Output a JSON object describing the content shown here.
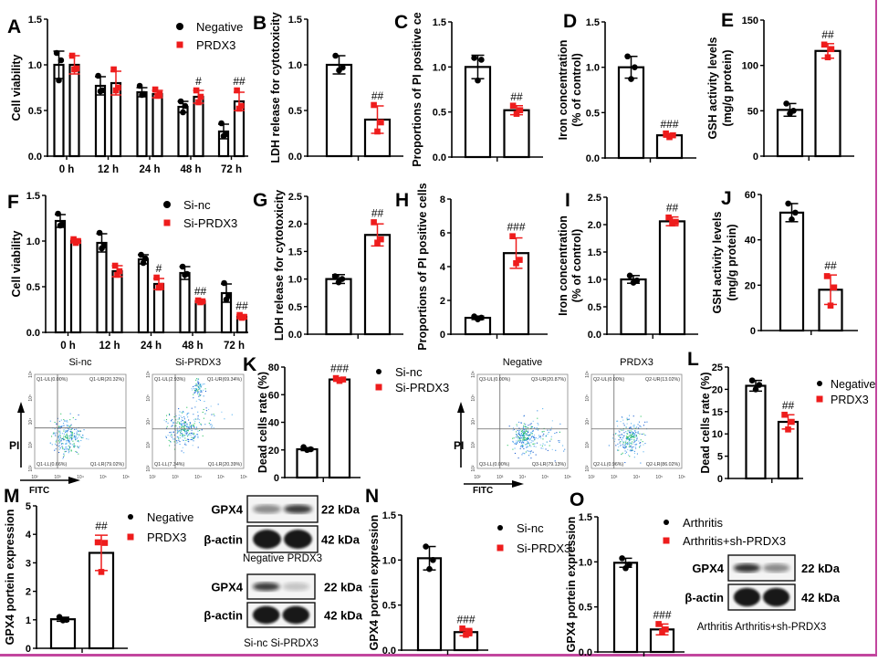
{
  "colors": {
    "control": "#000000",
    "treatment": "#ee1c1c",
    "frame": "#c2469e"
  },
  "chart_data": [
    {
      "panel": "A",
      "type": "bar",
      "ylabel": [
        "Cell viability"
      ],
      "ylim": [
        0,
        1.5
      ],
      "yticks": [
        "0.0",
        "0.5",
        "1.0",
        "1.5"
      ],
      "ytick_values": [
        0,
        0.5,
        1,
        1.5
      ],
      "categories": [
        "0 h",
        "12 h",
        "24 h",
        "48 h",
        "72 h"
      ],
      "series": [
        {
          "name": "Negative",
          "values": [
            1.0,
            0.77,
            0.7,
            0.54,
            0.27
          ],
          "sd": [
            0.15,
            0.1,
            0.05,
            0.06,
            0.08
          ],
          "points": [
            [
              1.13,
              1.05,
              0.83
            ],
            [
              0.88,
              0.72,
              0.71
            ],
            [
              0.77,
              0.68,
              0.67
            ],
            [
              0.6,
              0.55,
              0.48
            ],
            [
              0.36,
              0.24,
              0.22
            ]
          ]
        },
        {
          "name": "PRDX3",
          "values": [
            1.0,
            0.8,
            0.68,
            0.65,
            0.6
          ],
          "sd": [
            0.1,
            0.13,
            0.04,
            0.07,
            0.1
          ],
          "points": [
            [
              1.1,
              0.96,
              0.95
            ],
            [
              0.95,
              0.75,
              0.72
            ],
            [
              0.73,
              0.68,
              0.66
            ],
            [
              0.72,
              0.65,
              0.59
            ],
            [
              0.72,
              0.55,
              0.52
            ]
          ]
        }
      ],
      "significance": [
        "",
        "",
        "",
        "#",
        "##"
      ]
    },
    {
      "panel": "B",
      "type": "bar",
      "ylabel": [
        "LDH release for cytotoxicity"
      ],
      "ylim": [
        0,
        1.5
      ],
      "yticks": [
        "0.0",
        "0.5",
        "1.0",
        "1.5"
      ],
      "ytick_values": [
        0,
        0.5,
        1,
        1.5
      ],
      "series": [
        {
          "values": [
            1.0
          ],
          "sd": [
            0.1
          ],
          "points": [
            [
              1.1,
              0.97,
              0.94
            ]
          ]
        },
        {
          "values": [
            0.4
          ],
          "sd": [
            0.15
          ],
          "points": [
            [
              0.56,
              0.37,
              0.27
            ]
          ]
        }
      ],
      "significance": [
        "##"
      ]
    },
    {
      "panel": "C",
      "type": "bar",
      "ylabel": [
        "Proportions of PI positive ce"
      ],
      "ylim": [
        0,
        1.5
      ],
      "yticks": [
        "0.0",
        "0.5",
        "1.0",
        "1.5"
      ],
      "ytick_values": [
        0,
        0.5,
        1,
        1.5
      ],
      "series": [
        {
          "values": [
            1.0
          ],
          "sd": [
            0.13
          ],
          "points": [
            [
              1.1,
              1.08,
              0.85
            ]
          ]
        },
        {
          "values": [
            0.52
          ],
          "sd": [
            0.05
          ],
          "points": [
            [
              0.57,
              0.52,
              0.48
            ]
          ]
        }
      ],
      "significance": [
        "##"
      ]
    },
    {
      "panel": "D",
      "type": "bar",
      "ylabel": [
        "Iron concentration",
        "(% of control)"
      ],
      "ylim": [
        0,
        1.5
      ],
      "yticks": [
        "0.0",
        "0.5",
        "1.0",
        "1.5"
      ],
      "ytick_values": [
        0,
        0.5,
        1,
        1.5
      ],
      "series": [
        {
          "values": [
            1.0
          ],
          "sd": [
            0.12
          ],
          "points": [
            [
              1.12,
              1.0,
              0.87
            ]
          ]
        },
        {
          "values": [
            0.25
          ],
          "sd": [
            0.02
          ],
          "points": [
            [
              0.27,
              0.25,
              0.23
            ]
          ]
        }
      ],
      "significance": [
        "###"
      ]
    },
    {
      "panel": "E",
      "type": "bar",
      "ylabel": [
        "GSH activity levels",
        "(mg/g protein)"
      ],
      "ylim": [
        0,
        150
      ],
      "yticks": [
        "0",
        "50",
        "100",
        "150"
      ],
      "ytick_values": [
        0,
        50,
        100,
        150
      ],
      "series": [
        {
          "values": [
            51
          ],
          "sd": [
            7
          ],
          "points": [
            [
              58,
              50,
              47
            ]
          ]
        },
        {
          "values": [
            116
          ],
          "sd": [
            8
          ],
          "points": [
            [
              123,
              118,
              109
            ]
          ]
        }
      ],
      "significance": [
        "##"
      ]
    },
    {
      "panel": "F",
      "type": "bar",
      "ylabel": [
        "Cell viability"
      ],
      "ylim": [
        0,
        1.5
      ],
      "yticks": [
        "0.0",
        "0.5",
        "1.0",
        "1.5"
      ],
      "ytick_values": [
        0,
        0.5,
        1,
        1.5
      ],
      "categories": [
        "0 h",
        "12 h",
        "24 h",
        "48 h",
        "72 h"
      ],
      "series": [
        {
          "name": "Si-nc",
          "values": [
            1.22,
            0.98,
            0.8,
            0.65,
            0.43
          ],
          "sd": [
            0.07,
            0.1,
            0.05,
            0.07,
            0.1
          ],
          "points": [
            [
              1.3,
              1.18,
              1.17
            ],
            [
              1.09,
              0.95,
              0.92
            ],
            [
              0.85,
              0.81,
              0.76
            ],
            [
              0.72,
              0.64,
              0.63
            ],
            [
              0.54,
              0.4,
              0.36
            ]
          ]
        },
        {
          "name": "Si-PRDX3",
          "values": [
            1.0,
            0.67,
            0.53,
            0.34,
            0.17
          ],
          "sd": [
            0.02,
            0.06,
            0.06,
            0.01,
            0.02
          ],
          "points": [
            [
              1.02,
              1.0,
              0.98
            ],
            [
              0.73,
              0.67,
              0.63
            ],
            [
              0.6,
              0.51,
              0.49
            ],
            [
              0.35,
              0.34,
              0.33
            ],
            [
              0.19,
              0.17,
              0.16
            ]
          ]
        }
      ],
      "significance": [
        "",
        "",
        "#",
        "##",
        "##"
      ]
    },
    {
      "panel": "G",
      "type": "bar",
      "ylabel": [
        "LDH release for cytotoxicity"
      ],
      "ylim": [
        0,
        2.5
      ],
      "yticks": [
        "0.0",
        "0.5",
        "1.0",
        "1.5",
        "2.0",
        "2.5"
      ],
      "ytick_values": [
        0,
        0.5,
        1,
        1.5,
        2,
        2.5
      ],
      "series": [
        {
          "values": [
            1.0
          ],
          "sd": [
            0.08
          ],
          "points": [
            [
              1.05,
              1.0,
              0.94
            ]
          ]
        },
        {
          "values": [
            1.8
          ],
          "sd": [
            0.2
          ],
          "points": [
            [
              2.03,
              1.72,
              1.66
            ]
          ]
        }
      ],
      "significance": [
        "##"
      ]
    },
    {
      "panel": "H",
      "type": "bar",
      "ylabel": [
        "Proportions of PI positive cells"
      ],
      "ylim": [
        0,
        8
      ],
      "yticks": [
        "0",
        "2",
        "4",
        "6",
        "8"
      ],
      "ytick_values": [
        0,
        2,
        4,
        6,
        8
      ],
      "series": [
        {
          "values": [
            0.97
          ],
          "sd": [
            0.1
          ],
          "points": [
            [
              1.05,
              0.98,
              0.88
            ]
          ]
        },
        {
          "values": [
            4.8
          ],
          "sd": [
            0.9
          ],
          "points": [
            [
              5.8,
              4.4,
              4.2
            ]
          ]
        }
      ],
      "significance": [
        "###"
      ]
    },
    {
      "panel": "I",
      "type": "bar",
      "ylabel": [
        "Iron concentration",
        "(% of control)"
      ],
      "ylim": [
        0,
        2.5
      ],
      "yticks": [
        "0.0",
        "0.5",
        "1.0",
        "1.5",
        "2.0",
        "2.5"
      ],
      "ytick_values": [
        0,
        0.5,
        1,
        1.5,
        2,
        2.5
      ],
      "series": [
        {
          "values": [
            1.0
          ],
          "sd": [
            0.07
          ],
          "points": [
            [
              1.07,
              0.98,
              0.94
            ]
          ]
        },
        {
          "values": [
            2.06
          ],
          "sd": [
            0.08
          ],
          "points": [
            [
              2.13,
              2.05,
              2.02
            ]
          ]
        }
      ],
      "significance": [
        "##"
      ]
    },
    {
      "panel": "J",
      "type": "bar",
      "ylabel": [
        "GSH activity levels",
        "(mg/g protein)"
      ],
      "ylim": [
        0,
        60
      ],
      "yticks": [
        "0",
        "20",
        "40",
        "60"
      ],
      "ytick_values": [
        0,
        20,
        40,
        60
      ],
      "series": [
        {
          "values": [
            52
          ],
          "sd": [
            4
          ],
          "points": [
            [
              56,
              52,
              49
            ]
          ]
        },
        {
          "values": [
            18
          ],
          "sd": [
            6.5
          ],
          "points": [
            [
              24,
              19,
              11
            ]
          ]
        }
      ],
      "significance": [
        "##"
      ]
    },
    {
      "panel": "K",
      "type": "bar",
      "ylabel": [
        "Dead cells rate (%)"
      ],
      "ylim": [
        0,
        80
      ],
      "yticks": [
        "0",
        "20",
        "40",
        "60",
        "80"
      ],
      "ytick_values": [
        0,
        20,
        40,
        60,
        80
      ],
      "series": [
        {
          "name": "Si-nc",
          "values": [
            20.5
          ],
          "sd": [
            1
          ],
          "points": [
            [
              22,
              20.5,
              20
            ]
          ]
        },
        {
          "name": "Si-PRDX3",
          "values": [
            71
          ],
          "sd": [
            1.3
          ],
          "points": [
            [
              72,
              71,
              70
            ]
          ]
        }
      ],
      "significance": [
        "###"
      ]
    },
    {
      "panel": "L",
      "type": "bar",
      "ylabel": [
        "Dead cells rate  (%)"
      ],
      "ylim": [
        0,
        25
      ],
      "yticks": [
        "0",
        "5",
        "10",
        "15",
        "20",
        "25"
      ],
      "ytick_values": [
        0,
        5,
        10,
        15,
        20,
        25
      ],
      "series": [
        {
          "name": "Negative",
          "values": [
            20.8
          ],
          "sd": [
            1.2
          ],
          "points": [
            [
              22,
              21,
              20
            ]
          ]
        },
        {
          "name": "PRDX3",
          "values": [
            12.7
          ],
          "sd": [
            1.6
          ],
          "points": [
            [
              14.3,
              12.7,
              11
            ]
          ]
        }
      ],
      "significance": [
        "##"
      ]
    },
    {
      "panel": "M",
      "type": "bar",
      "ylabel": [
        "GPX4 portein expression"
      ],
      "ylim": [
        0,
        5
      ],
      "yticks": [
        "0",
        "1",
        "2",
        "3",
        "4",
        "5"
      ],
      "ytick_values": [
        0,
        1,
        2,
        3,
        4,
        5
      ],
      "series": [
        {
          "name": "Negative",
          "values": [
            1.02
          ],
          "sd": [
            0.07
          ],
          "points": [
            [
              1.1,
              1.0,
              0.98
            ]
          ]
        },
        {
          "name": "PRDX3",
          "values": [
            3.35
          ],
          "sd": [
            0.62
          ],
          "points": [
            [
              3.72,
              3.7,
              2.68
            ]
          ]
        }
      ],
      "significance": [
        "##"
      ]
    },
    {
      "panel": "N",
      "type": "bar",
      "ylabel": [
        "GPX4 portein expression"
      ],
      "ylim": [
        0,
        1.5
      ],
      "yticks": [
        "0.0",
        "0.5",
        "1.0",
        "1.5"
      ],
      "ytick_values": [
        0,
        0.5,
        1,
        1.5
      ],
      "series": [
        {
          "name": "Si-nc",
          "values": [
            1.02
          ],
          "sd": [
            0.13
          ],
          "points": [
            [
              1.15,
              1.0,
              0.9
            ]
          ]
        },
        {
          "name": "Si-PRDX3",
          "values": [
            0.2
          ],
          "sd": [
            0.04
          ],
          "points": [
            [
              0.24,
              0.2,
              0.17
            ]
          ]
        }
      ],
      "significance": [
        "###"
      ]
    },
    {
      "panel": "O",
      "type": "bar",
      "ylabel": [
        "GPX4 portein expression"
      ],
      "ylim": [
        0,
        1.5
      ],
      "yticks": [
        "0.0",
        "0.5",
        "1.0",
        "1.5"
      ],
      "ytick_values": [
        0,
        0.5,
        1,
        1.5
      ],
      "series": [
        {
          "name": "Arthritis",
          "values": [
            0.99
          ],
          "sd": [
            0.05
          ],
          "points": [
            [
              1.04,
              0.97,
              0.93
            ]
          ]
        },
        {
          "name": "Arthritis+sh-PRDX3",
          "values": [
            0.25
          ],
          "sd": [
            0.06
          ],
          "points": [
            [
              0.31,
              0.25,
              0.22
            ]
          ]
        }
      ],
      "significance": [
        "###"
      ]
    }
  ],
  "flow": {
    "y_axis_label": "PI",
    "x_axis_label": "FITC",
    "axis_ticks": [
      "10²",
      "10³",
      "10⁴",
      "10⁵",
      "10⁶"
    ],
    "plots": [
      {
        "title": "Si-nc",
        "ul": "Q1-UL(0.00%)",
        "ur": "Q1-UR(20.32%)",
        "ll": "Q1-LL(0.66%)",
        "lr": "Q1-LR(79.02%)"
      },
      {
        "title": "Si-PRDX3",
        "ul": "Q1-UL(2.93%)",
        "ur": "Q1-UR(69.34%)",
        "ll": "Q1-LL(7.34%)",
        "lr": "Q1-LR(20.39%)"
      },
      {
        "title": "Negative",
        "ul": "Q3-UL(0.00%)",
        "ur": "Q3-UR(20.87%)",
        "ll": "Q3-LL(0.00%)",
        "lr": "Q3-LR(79.13%)"
      },
      {
        "title": "PRDX3",
        "ul": "Q2-UL(0.00%)",
        "ur": "Q2-UR(13.02%)",
        "ll": "Q2-LL(0.96%)",
        "lr": "Q2-LR(86.02%)"
      }
    ]
  },
  "blots": [
    {
      "rows": [
        {
          "label": "GPX4",
          "size": "22 kDa"
        },
        {
          "label": "β-actin",
          "size": "42 kDa"
        }
      ],
      "lanes": "Negative PRDX3",
      "gpx4_intensity": [
        0.45,
        0.8
      ]
    },
    {
      "rows": [
        {
          "label": "GPX4",
          "size": "22 kDa"
        },
        {
          "label": "β-actin",
          "size": "42 kDa"
        }
      ],
      "lanes": "Si-nc  Si-PRDX3",
      "gpx4_intensity": [
        0.8,
        0.2
      ]
    },
    {
      "rows": [
        {
          "label": "GPX4",
          "size": "22 kDa"
        },
        {
          "label": "β-actin",
          "size": "42 kDa"
        }
      ],
      "lanes": "Arthritis  Arthritis+sh-PRDX3",
      "gpx4_intensity": [
        0.85,
        0.45
      ]
    }
  ]
}
